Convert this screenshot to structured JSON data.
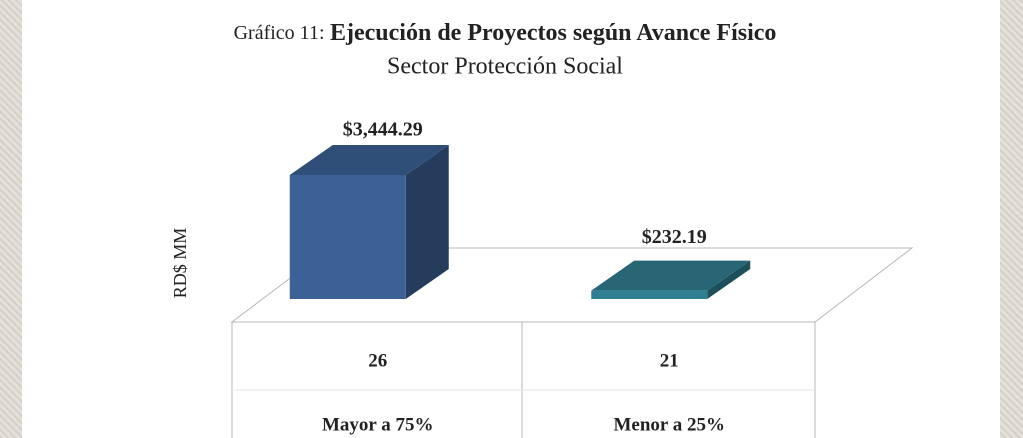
{
  "chart_data": {
    "type": "bar3d",
    "title_prefix": "Gráfico 11:",
    "title": "Ejecución de Proyectos según Avance Físico",
    "subtitle": "Sector Protección Social",
    "y_label": "RD$ MM",
    "categories": [
      "Mayor a 75%",
      "Menor a 25%"
    ],
    "values": [
      3444.29,
      232.19
    ],
    "value_labels": [
      "$3,444.29",
      "$232.19"
    ],
    "counts": [
      26,
      21
    ],
    "colors": [
      "#3b6196",
      "#2f7f92"
    ]
  }
}
